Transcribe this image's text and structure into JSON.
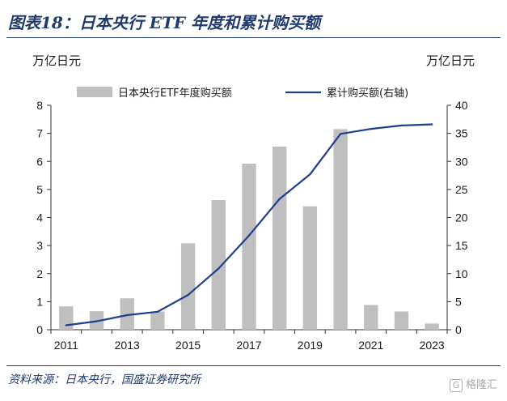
{
  "figure": {
    "title": "图表18：日本央行 ETF 年度和累计购买额",
    "source": "资料来源：日本央行，国盛证券研究所",
    "watermark": "格隆汇"
  },
  "colors": {
    "bar": "#bfbfbf",
    "line": "#1f3f8f",
    "title": "#1f3a6b"
  },
  "chart_data": {
    "type": "bar",
    "categories": [
      "2011",
      "2012",
      "2013",
      "2014",
      "2015",
      "2016",
      "2017",
      "2018",
      "2019",
      "2020",
      "2021",
      "2022",
      "2023"
    ],
    "x_tick_labels": [
      "2011",
      "2013",
      "2015",
      "2017",
      "2019",
      "2021",
      "2023"
    ],
    "series": [
      {
        "name": "日本央行ETF年度购买额",
        "type": "bar",
        "axis": "left",
        "values": [
          0.83,
          0.66,
          1.12,
          0.65,
          3.08,
          4.62,
          5.92,
          6.53,
          4.4,
          7.15,
          0.88,
          0.65,
          0.22
        ]
      },
      {
        "name": "累计购买额(右轴)",
        "type": "line",
        "axis": "right",
        "values": [
          0.8,
          1.5,
          2.6,
          3.2,
          6.2,
          10.9,
          16.8,
          23.3,
          27.7,
          34.9,
          35.8,
          36.4,
          36.6
        ]
      }
    ],
    "yleft": {
      "label": "万亿日元",
      "lim": [
        0,
        8
      ],
      "ticks": [
        0,
        1,
        2,
        3,
        4,
        5,
        6,
        7,
        8
      ]
    },
    "yright": {
      "label": "万亿日元",
      "lim": [
        0,
        40
      ],
      "ticks": [
        0,
        5,
        10,
        15,
        20,
        25,
        30,
        35,
        40
      ]
    },
    "legend": "top",
    "grid": false
  }
}
